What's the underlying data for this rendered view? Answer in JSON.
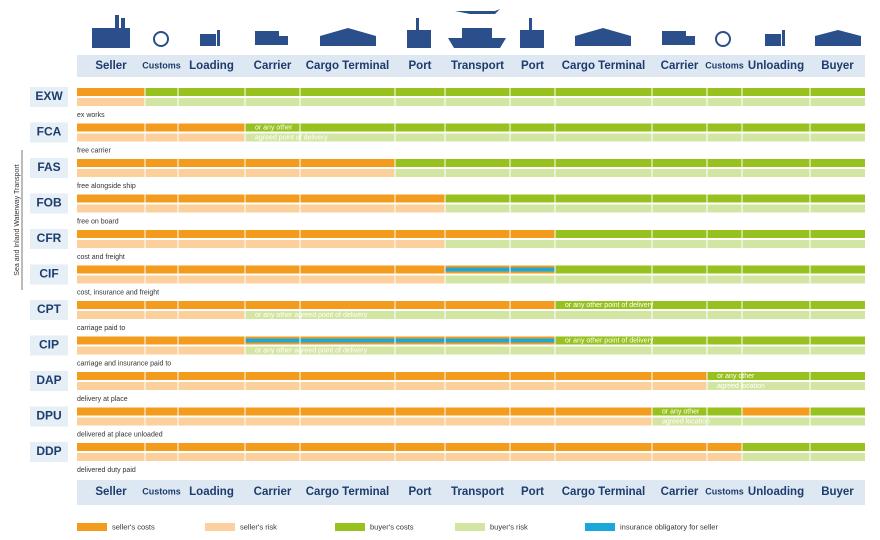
{
  "side_label": "Sea and Inland Waterway Transport",
  "columns": [
    "Seller",
    "Customs",
    "Loading",
    "Carrier",
    "Cargo Terminal",
    "Port",
    "Transport",
    "Port",
    "Cargo Terminal",
    "Carrier",
    "Customs",
    "Unloading",
    "Buyer"
  ],
  "terms": [
    {
      "code": "EXW",
      "description": "ex works",
      "notes": []
    },
    {
      "code": "FCA",
      "description": "free carrier",
      "notes": [
        "or any other",
        "agreed point of delivery"
      ]
    },
    {
      "code": "FAS",
      "description": "free alongside ship",
      "notes": []
    },
    {
      "code": "FOB",
      "description": "free on board",
      "notes": []
    },
    {
      "code": "CFR",
      "description": "cost and freight",
      "notes": []
    },
    {
      "code": "CIF",
      "description": "cost, insurance and freight",
      "notes": []
    },
    {
      "code": "CPT",
      "description": "carriage paid to",
      "notes": [
        "or any other point of delivery",
        "or any other agreed point of delivery"
      ]
    },
    {
      "code": "CIP",
      "description": "carriage and insurance paid to",
      "notes": [
        "or any other point of delivery",
        "or any other agreed point of delivery"
      ]
    },
    {
      "code": "DAP",
      "description": "delivery at place",
      "notes": [
        "or any other",
        "agreed location"
      ]
    },
    {
      "code": "DPU",
      "description": "delivered at place unloaded",
      "notes": [
        "or any other",
        "agreed location"
      ]
    },
    {
      "code": "DDP",
      "description": "delivered duty paid",
      "notes": []
    }
  ],
  "legend": [
    "seller's costs",
    "seller's risk",
    "buyer's costs",
    "buyer's risk",
    "insurance obligatory for seller"
  ]
}
